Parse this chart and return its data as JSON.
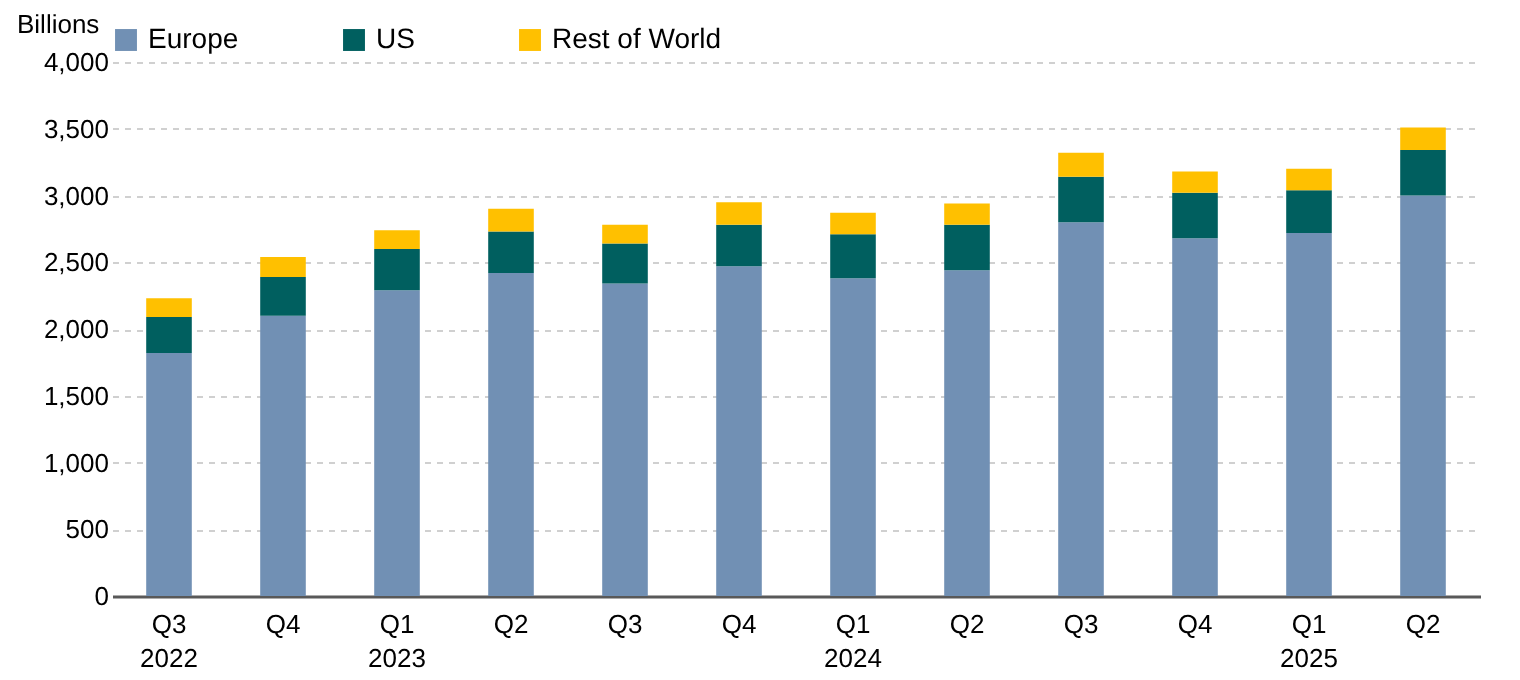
{
  "chart_data": {
    "type": "bar",
    "stacked": true,
    "ylabel": "Billions",
    "categories": [
      "Q3\n2022",
      "Q4",
      "Q1\n2023",
      "Q2",
      "Q3",
      "Q4",
      "Q1\n2024",
      "Q2",
      "Q3",
      "Q4",
      "Q1\n2025",
      "Q2"
    ],
    "series": [
      {
        "name": "Europe",
        "color": "#7190b4",
        "values": [
          1820,
          2100,
          2290,
          2420,
          2340,
          2470,
          2380,
          2440,
          2800,
          2680,
          2720,
          3000
        ]
      },
      {
        "name": "US",
        "color": "#005f5f",
        "values": [
          270,
          290,
          310,
          310,
          300,
          310,
          330,
          340,
          340,
          340,
          320,
          340
        ]
      },
      {
        "name": "Rest of World",
        "color": "#ffc000",
        "values": [
          140,
          150,
          140,
          170,
          140,
          170,
          160,
          160,
          180,
          160,
          160,
          170
        ]
      }
    ],
    "ylim": [
      0,
      4000
    ],
    "yticks": [
      0,
      500,
      {
        "value": 1000,
        "label": "1,000"
      },
      {
        "value": 1500,
        "label": "1,500"
      },
      {
        "value": 2000,
        "label": "2,000"
      },
      {
        "value": 2500,
        "label": "2,500"
      },
      {
        "value": 3000,
        "label": "3,000"
      },
      {
        "value": 3500,
        "label": "3,500"
      },
      {
        "value": 4000,
        "label": "4,000"
      }
    ],
    "grid": "y",
    "legend": "top"
  }
}
